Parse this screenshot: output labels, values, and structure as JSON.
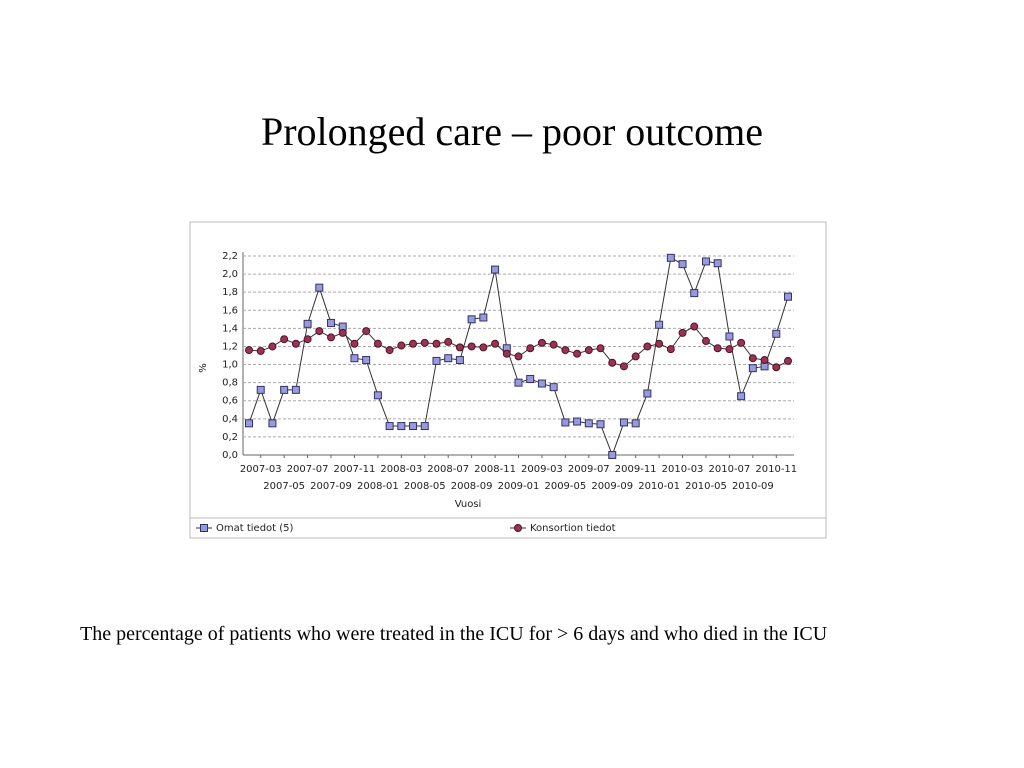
{
  "title": "Prolonged care – poor outcome",
  "caption": "The percentage of patients who were treated in the ICU for > 6 days and who died in the ICU",
  "chart_data": {
    "type": "line",
    "xlabel": "Vuosi",
    "ylabel": "%",
    "categories": [
      null,
      "2007-03",
      null,
      "2007-05",
      null,
      "2007-07",
      null,
      "2007-09",
      null,
      "2007-11",
      null,
      "2008-01",
      null,
      "2008-03",
      null,
      "2008-05",
      null,
      "2008-07",
      null,
      "2008-09",
      null,
      "2008-11",
      null,
      "2009-01",
      null,
      "2009-03",
      null,
      "2009-05",
      null,
      "2009-07",
      null,
      "2009-09",
      null,
      "2009-11",
      null,
      "2010-01",
      null,
      "2010-03",
      null,
      "2010-05",
      null,
      "2010-07",
      null,
      "2010-09",
      null,
      "2010-11",
      null
    ],
    "series": [
      {
        "name": "Omat tiedot (5)",
        "color": "#9999dd",
        "marker": "square",
        "values": [
          0.35,
          0.72,
          0.35,
          0.72,
          0.72,
          1.45,
          1.85,
          1.46,
          1.42,
          1.07,
          1.05,
          0.66,
          0.32,
          0.32,
          0.32,
          0.32,
          1.04,
          1.07,
          1.05,
          1.5,
          1.52,
          2.05,
          1.18,
          0.8,
          0.84,
          0.79,
          0.75,
          0.36,
          0.37,
          0.35,
          0.34,
          0.0,
          0.36,
          0.35,
          0.68,
          1.44,
          2.18,
          2.11,
          1.79,
          2.14,
          2.12,
          1.31,
          0.65,
          0.96,
          0.98,
          1.34,
          1.75
        ]
      },
      {
        "name": "Konsortion tiedot",
        "color": "#993355",
        "marker": "circle",
        "values": [
          1.16,
          1.15,
          1.2,
          1.28,
          1.23,
          1.28,
          1.37,
          1.3,
          1.35,
          1.23,
          1.37,
          1.23,
          1.16,
          1.21,
          1.23,
          1.24,
          1.23,
          1.25,
          1.19,
          1.2,
          1.19,
          1.23,
          1.12,
          1.09,
          1.18,
          1.24,
          1.22,
          1.16,
          1.12,
          1.16,
          1.18,
          1.02,
          0.98,
          1.09,
          1.2,
          1.23,
          1.17,
          1.35,
          1.42,
          1.26,
          1.18,
          1.17,
          1.24,
          1.07,
          1.05,
          0.97,
          1.04
        ]
      }
    ],
    "ylim": [
      0,
      2.2
    ],
    "yticks": [
      {
        "value": 0,
        "label": "0,0"
      },
      {
        "value": 0.2,
        "label": "0,2"
      },
      {
        "value": 0.4,
        "label": "0,4"
      },
      {
        "value": 0.6,
        "label": "0,6"
      },
      {
        "value": 0.8,
        "label": "0,8"
      },
      {
        "value": 1.0,
        "label": "1,0"
      },
      {
        "value": 1.2,
        "label": "1,2"
      },
      {
        "value": 1.4,
        "label": "1,4"
      },
      {
        "value": 1.6,
        "label": "1,6"
      },
      {
        "value": 1.8,
        "label": "1,8"
      },
      {
        "value": 2.0,
        "label": "2,0"
      },
      {
        "value": 2.2,
        "label": "2,2"
      }
    ],
    "grid": true,
    "legend": "bottom"
  }
}
